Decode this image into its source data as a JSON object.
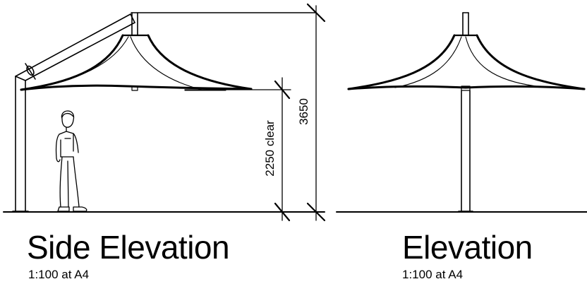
{
  "views": [
    {
      "title": "Side Elevation",
      "scale": "1:100 at A4",
      "dimensions": [
        {
          "label": "2250 clear"
        },
        {
          "label": "3650"
        }
      ]
    },
    {
      "title": "Elevation",
      "scale": "1:100 at A4"
    }
  ],
  "colors": {
    "line": "#000000",
    "background": "#ffffff"
  }
}
